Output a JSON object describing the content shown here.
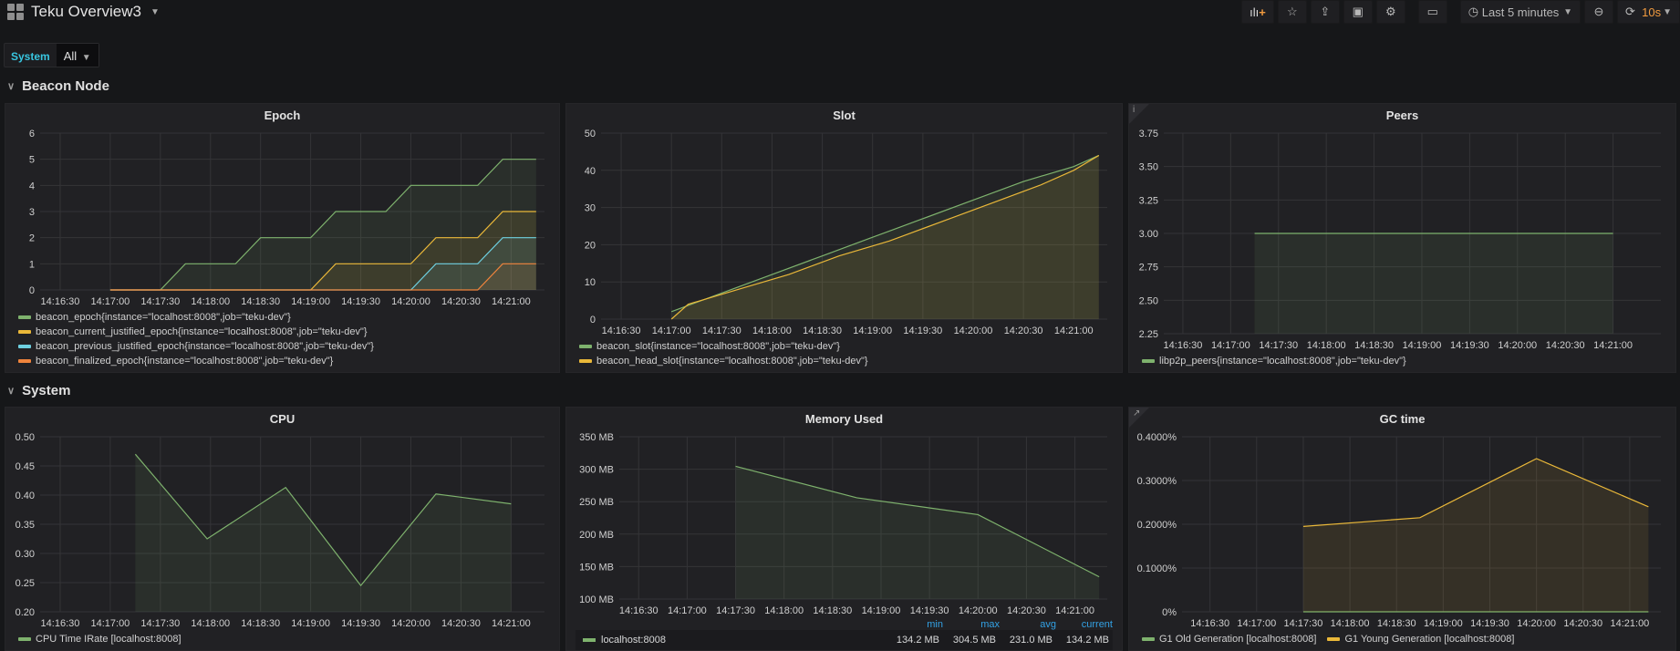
{
  "header": {
    "title": "Teku Overview3",
    "time_range": "Last 5 minutes",
    "refresh": "10s"
  },
  "variables": {
    "label": "System",
    "value": "All"
  },
  "rows": [
    {
      "title": "Beacon Node"
    },
    {
      "title": "System"
    }
  ],
  "colors": {
    "green": "#7eb26d",
    "yellow": "#eab839",
    "cyan": "#6ed0e0",
    "orange": "#ef843c"
  },
  "xticks": [
    "14:16:30",
    "14:17:00",
    "14:17:30",
    "14:18:00",
    "14:18:30",
    "14:19:00",
    "14:19:30",
    "14:20:00",
    "14:20:30",
    "14:21:00"
  ],
  "chart_data": [
    {
      "id": "epoch",
      "title": "Epoch",
      "type": "line",
      "ylim": [
        0,
        6
      ],
      "yticks": [
        0,
        1,
        2,
        3,
        4,
        5,
        6
      ],
      "ytick_labels": [
        "0",
        "1",
        "2",
        "3",
        "4",
        "5",
        "6"
      ],
      "xlim": [
        "14:16:18",
        "14:21:20"
      ],
      "series": [
        {
          "name": "beacon_epoch{instance=\"localhost:8008\",job=\"teku-dev\"}",
          "color": "#7eb26d",
          "points": [
            [
              "14:17:00",
              0
            ],
            [
              "14:17:30",
              0
            ],
            [
              "14:17:45",
              1
            ],
            [
              "14:18:15",
              1
            ],
            [
              "14:18:30",
              2
            ],
            [
              "14:19:00",
              2
            ],
            [
              "14:19:15",
              3
            ],
            [
              "14:19:45",
              3
            ],
            [
              "14:20:00",
              4
            ],
            [
              "14:20:40",
              4
            ],
            [
              "14:20:55",
              5
            ],
            [
              "14:21:15",
              5
            ]
          ]
        },
        {
          "name": "beacon_current_justified_epoch{instance=\"localhost:8008\",job=\"teku-dev\"}",
          "color": "#eab839",
          "points": [
            [
              "14:17:00",
              0
            ],
            [
              "14:19:00",
              0
            ],
            [
              "14:19:15",
              1
            ],
            [
              "14:20:00",
              1
            ],
            [
              "14:20:15",
              2
            ],
            [
              "14:20:40",
              2
            ],
            [
              "14:20:55",
              3
            ],
            [
              "14:21:15",
              3
            ]
          ]
        },
        {
          "name": "beacon_previous_justified_epoch{instance=\"localhost:8008\",job=\"teku-dev\"}",
          "color": "#6ed0e0",
          "points": [
            [
              "14:17:00",
              0
            ],
            [
              "14:20:00",
              0
            ],
            [
              "14:20:15",
              1
            ],
            [
              "14:20:40",
              1
            ],
            [
              "14:20:55",
              2
            ],
            [
              "14:21:15",
              2
            ]
          ]
        },
        {
          "name": "beacon_finalized_epoch{instance=\"localhost:8008\",job=\"teku-dev\"}",
          "color": "#ef843c",
          "points": [
            [
              "14:17:00",
              0
            ],
            [
              "14:20:40",
              0
            ],
            [
              "14:20:55",
              1
            ],
            [
              "14:21:15",
              1
            ]
          ]
        }
      ]
    },
    {
      "id": "slot",
      "title": "Slot",
      "type": "line",
      "ylim": [
        0,
        50
      ],
      "yticks": [
        0,
        10,
        20,
        30,
        40,
        50
      ],
      "ytick_labels": [
        "0",
        "10",
        "20",
        "30",
        "40",
        "50"
      ],
      "xlim": [
        "14:16:18",
        "14:21:20"
      ],
      "series": [
        {
          "name": "beacon_slot{instance=\"localhost:8008\",job=\"teku-dev\"}",
          "color": "#7eb26d",
          "points": [
            [
              "14:17:00",
              2
            ],
            [
              "14:17:30",
              7
            ],
            [
              "14:18:00",
              12
            ],
            [
              "14:18:30",
              17
            ],
            [
              "14:19:00",
              22
            ],
            [
              "14:19:30",
              27
            ],
            [
              "14:20:00",
              32
            ],
            [
              "14:20:30",
              37
            ],
            [
              "14:21:00",
              41
            ],
            [
              "14:21:15",
              44
            ]
          ]
        },
        {
          "name": "beacon_head_slot{instance=\"localhost:8008\",job=\"teku-dev\"}",
          "color": "#eab839",
          "points": [
            [
              "14:17:00",
              0
            ],
            [
              "14:17:10",
              4
            ],
            [
              "14:17:40",
              8
            ],
            [
              "14:18:10",
              12
            ],
            [
              "14:18:40",
              17
            ],
            [
              "14:19:10",
              21
            ],
            [
              "14:19:40",
              26
            ],
            [
              "14:20:10",
              31
            ],
            [
              "14:20:40",
              36
            ],
            [
              "14:21:00",
              40
            ],
            [
              "14:21:15",
              44
            ]
          ]
        }
      ]
    },
    {
      "id": "peers",
      "title": "Peers",
      "type": "line",
      "ylim": [
        2.25,
        3.75
      ],
      "yticks": [
        2.25,
        2.5,
        2.75,
        3,
        3.25,
        3.5,
        3.75
      ],
      "ytick_labels": [
        "2.25",
        "2.50",
        "2.75",
        "3.00",
        "3.25",
        "3.50",
        "3.75"
      ],
      "xlim": [
        "14:16:18",
        "14:21:30"
      ],
      "series": [
        {
          "name": "libp2p_peers{instance=\"localhost:8008\",job=\"teku-dev\"}",
          "color": "#7eb26d",
          "points": [
            [
              "14:17:15",
              3
            ],
            [
              "14:21:00",
              3
            ]
          ]
        }
      ]
    },
    {
      "id": "cpu",
      "title": "CPU",
      "type": "line",
      "ylim": [
        0.2,
        0.5
      ],
      "yticks": [
        0.2,
        0.25,
        0.3,
        0.35,
        0.4,
        0.45,
        0.5
      ],
      "ytick_labels": [
        "0.20",
        "0.25",
        "0.30",
        "0.35",
        "0.40",
        "0.45",
        "0.50"
      ],
      "xlim": [
        "14:16:18",
        "14:21:20"
      ],
      "series": [
        {
          "name": "CPU Time IRate [localhost:8008]",
          "color": "#7eb26d",
          "points": [
            [
              "14:17:15",
              0.47
            ],
            [
              "14:17:58",
              0.325
            ],
            [
              "14:18:45",
              0.413
            ],
            [
              "14:19:30",
              0.245
            ],
            [
              "14:20:15",
              0.402
            ],
            [
              "14:21:00",
              0.385
            ]
          ]
        }
      ]
    },
    {
      "id": "memory",
      "title": "Memory Used",
      "type": "line",
      "ylim": [
        100,
        350
      ],
      "yticks": [
        100,
        150,
        200,
        250,
        300,
        350
      ],
      "ytick_labels": [
        "100 MB",
        "150 MB",
        "200 MB",
        "250 MB",
        "300 MB",
        "350 MB"
      ],
      "xlim": [
        "14:16:18",
        "14:21:20"
      ],
      "series": [
        {
          "name": "localhost:8008",
          "color": "#7eb26d",
          "points": [
            [
              "14:17:30",
              304.5
            ],
            [
              "14:18:45",
              256
            ],
            [
              "14:20:00",
              230
            ],
            [
              "14:21:15",
              134.2
            ]
          ],
          "min": "134.2 MB",
          "max": "304.5 MB",
          "avg": "231.0 MB",
          "current": "134.2 MB"
        }
      ],
      "legend_headers": [
        "min",
        "max",
        "avg",
        "current"
      ]
    },
    {
      "id": "gc",
      "title": "GC time",
      "type": "line",
      "ylim": [
        0,
        0.4
      ],
      "yticks": [
        0,
        0.1,
        0.2,
        0.3,
        0.4
      ],
      "ytick_labels": [
        "0%",
        "0.1000%",
        "0.2000%",
        "0.3000%",
        "0.4000%"
      ],
      "xlim": [
        "14:16:12",
        "14:21:20"
      ],
      "series": [
        {
          "name": "G1 Old Generation [localhost:8008]",
          "color": "#7eb26d",
          "points": [
            [
              "14:17:30",
              0
            ],
            [
              "14:21:12",
              0
            ]
          ]
        },
        {
          "name": "G1 Young Generation [localhost:8008]",
          "color": "#eab839",
          "points": [
            [
              "14:17:30",
              0.195
            ],
            [
              "14:18:45",
              0.215
            ],
            [
              "14:20:00",
              0.35
            ],
            [
              "14:21:12",
              0.24
            ]
          ]
        }
      ]
    }
  ]
}
